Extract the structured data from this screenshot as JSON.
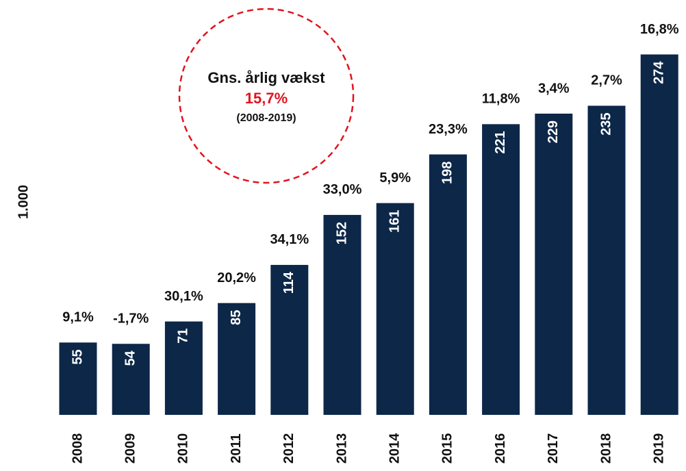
{
  "chart_data": {
    "type": "bar",
    "y_axis_label": "1.000",
    "categories": [
      "2008",
      "2009",
      "2010",
      "2011",
      "2012",
      "2013",
      "2014",
      "2015",
      "2016",
      "2017",
      "2018",
      "2019"
    ],
    "values": [
      55,
      54,
      71,
      85,
      114,
      152,
      161,
      198,
      221,
      229,
      235,
      274
    ],
    "growth_labels": [
      "9,1%",
      "-1,7%",
      "30,1%",
      "20,2%",
      "34,1%",
      "33,0%",
      "5,9%",
      "23,3%",
      "11,8%",
      "3,4%",
      "2,7%",
      "16,8%"
    ],
    "color": "#0c2748",
    "ylim": [
      0,
      280
    ],
    "annotation": {
      "title": "Gns. årlig vækst",
      "value": "15,7%",
      "period": "(2008-2019)"
    }
  }
}
